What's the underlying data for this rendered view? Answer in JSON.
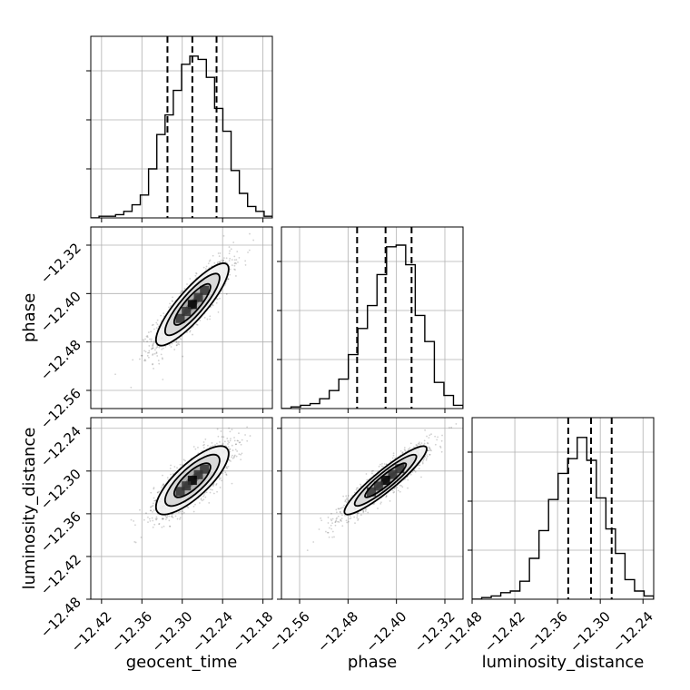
{
  "chart_data": {
    "type": "corner",
    "parameters": [
      "geocent_time",
      "phase",
      "luminosity_distance"
    ],
    "axis_labels": {
      "x": [
        "geocent_time",
        "phase",
        "luminosity_distance"
      ],
      "y": [
        "",
        "phase",
        "luminosity_distance"
      ]
    },
    "tick_labels": {
      "geocent_time": [
        "−12.42",
        "−12.36",
        "−12.30",
        "−12.24",
        "−12.18"
      ],
      "phase": [
        "−12.56",
        "−12.48",
        "−12.40",
        "−12.32"
      ],
      "luminosity_distance": [
        "−12.48",
        "−12.42",
        "−12.36",
        "−12.30",
        "−12.24"
      ]
    },
    "ticks": {
      "geocent_time": [
        -12.42,
        -12.36,
        -12.3,
        -12.24,
        -12.18
      ],
      "phase": [
        -12.56,
        -12.48,
        -12.4,
        -12.32
      ],
      "luminosity_distance": [
        -12.48,
        -12.42,
        -12.36,
        -12.3,
        -12.24
      ]
    },
    "ranges": {
      "geocent_time": [
        -12.436,
        -12.166
      ],
      "phase": [
        -12.59,
        -12.29
      ],
      "luminosity_distance": [
        -12.48,
        -12.225
      ]
    },
    "quantiles": {
      "geocent_time": [
        -12.322,
        -12.285,
        -12.249
      ],
      "phase": [
        -12.465,
        -12.418,
        -12.375
      ],
      "luminosity_distance": [
        -12.345,
        -12.313,
        -12.284
      ]
    },
    "histograms": {
      "geocent_time": [
        0.0,
        0.01,
        0.01,
        0.02,
        0.04,
        0.08,
        0.14,
        0.3,
        0.51,
        0.63,
        0.78,
        0.94,
        0.99,
        0.97,
        0.86,
        0.67,
        0.53,
        0.29,
        0.15,
        0.07,
        0.04,
        0.01
      ],
      "phase": [
        0.0,
        0.01,
        0.02,
        0.03,
        0.06,
        0.11,
        0.18,
        0.33,
        0.49,
        0.63,
        0.82,
        0.99,
        1.0,
        0.88,
        0.57,
        0.41,
        0.16,
        0.08,
        0.02
      ],
      "luminosity_distance": [
        0.0,
        0.01,
        0.02,
        0.04,
        0.05,
        0.11,
        0.25,
        0.42,
        0.61,
        0.77,
        0.86,
        0.99,
        0.85,
        0.62,
        0.43,
        0.28,
        0.12,
        0.05,
        0.02
      ]
    },
    "contours": {
      "geocent_time__phase": {
        "center": [
          -12.285,
          -12.418
        ],
        "sigmas": [
          0.027,
          0.034
        ],
        "correlation": 0.86
      },
      "geocent_time__luminosity_distance": {
        "center": [
          -12.285,
          -12.313
        ],
        "sigmas": [
          0.027,
          0.024
        ],
        "correlation": 0.78
      },
      "phase__luminosity_distance": {
        "center": [
          -12.418,
          -12.313
        ],
        "sigmas": [
          0.034,
          0.024
        ],
        "correlation": 0.92
      }
    },
    "contour_levels": [
      0.5,
      1.0,
      1.5,
      2.0
    ],
    "histogram_ticks": [
      0.3,
      0.6,
      0.9
    ],
    "grid": true
  }
}
